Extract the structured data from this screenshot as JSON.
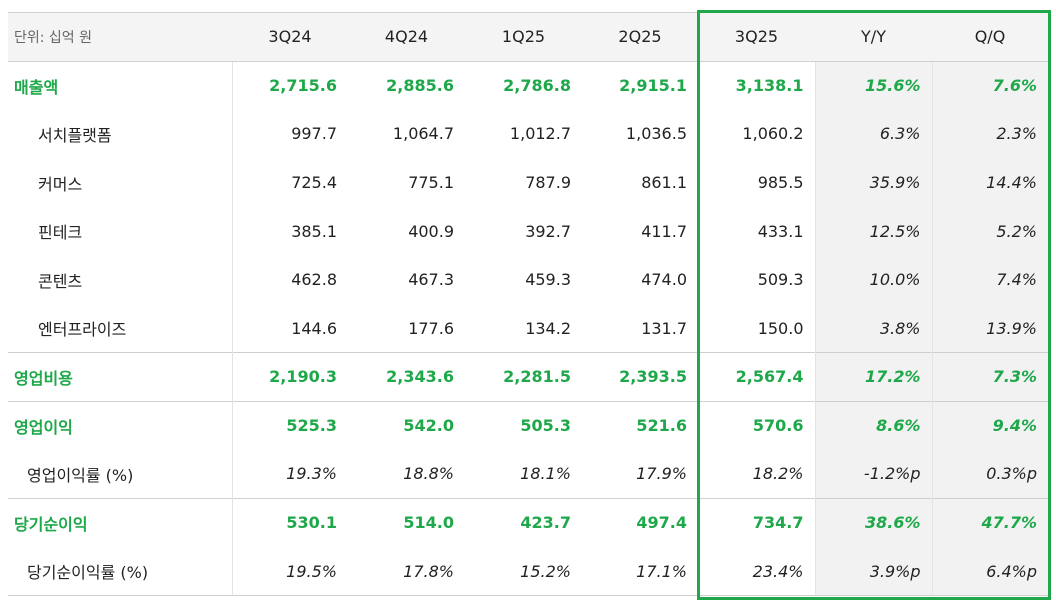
{
  "table": {
    "header": [
      "단위: 십억 원",
      "3Q24",
      "4Q24",
      "1Q25",
      "2Q25",
      "3Q25",
      "Y/Y",
      "Q/Q"
    ],
    "rows": [
      [
        "매출액",
        "2,715.6",
        "2,885.6",
        "2,786.8",
        "2,915.1",
        "3,138.1",
        "15.6%",
        "7.6%"
      ],
      [
        "서치플랫폼",
        "997.7",
        "1,064.7",
        "1,012.7",
        "1,036.5",
        "1,060.2",
        "6.3%",
        "2.3%"
      ],
      [
        "커머스",
        "725.4",
        "775.1",
        "787.9",
        "861.1",
        "985.5",
        "35.9%",
        "14.4%"
      ],
      [
        "핀테크",
        "385.1",
        "400.9",
        "392.7",
        "411.7",
        "433.1",
        "12.5%",
        "5.2%"
      ],
      [
        "콘텐츠",
        "462.8",
        "467.3",
        "459.3",
        "474.0",
        "509.3",
        "10.0%",
        "7.4%"
      ],
      [
        "엔터프라이즈",
        "144.6",
        "177.6",
        "134.2",
        "131.7",
        "150.0",
        "3.8%",
        "13.9%"
      ],
      [
        "영업비용",
        "2,190.3",
        "2,343.6",
        "2,281.5",
        "2,393.5",
        "2,567.4",
        "17.2%",
        "7.3%"
      ],
      [
        "영업이익",
        "525.3",
        "542.0",
        "505.3",
        "521.6",
        "570.6",
        "8.6%",
        "9.4%"
      ],
      [
        "영업이익률 (%)",
        "19.3%",
        "18.8%",
        "18.1%",
        "17.9%",
        "18.2%",
        "-1.2%p",
        "0.3%p"
      ],
      [
        "당기순이익",
        "530.1",
        "514.0",
        "423.7",
        "497.4",
        "734.7",
        "38.6%",
        "47.7%"
      ],
      [
        "당기순이익률 (%)",
        "19.5%",
        "17.8%",
        "15.2%",
        "17.1%",
        "23.4%",
        "3.9%p",
        "6.4%p"
      ]
    ]
  }
}
